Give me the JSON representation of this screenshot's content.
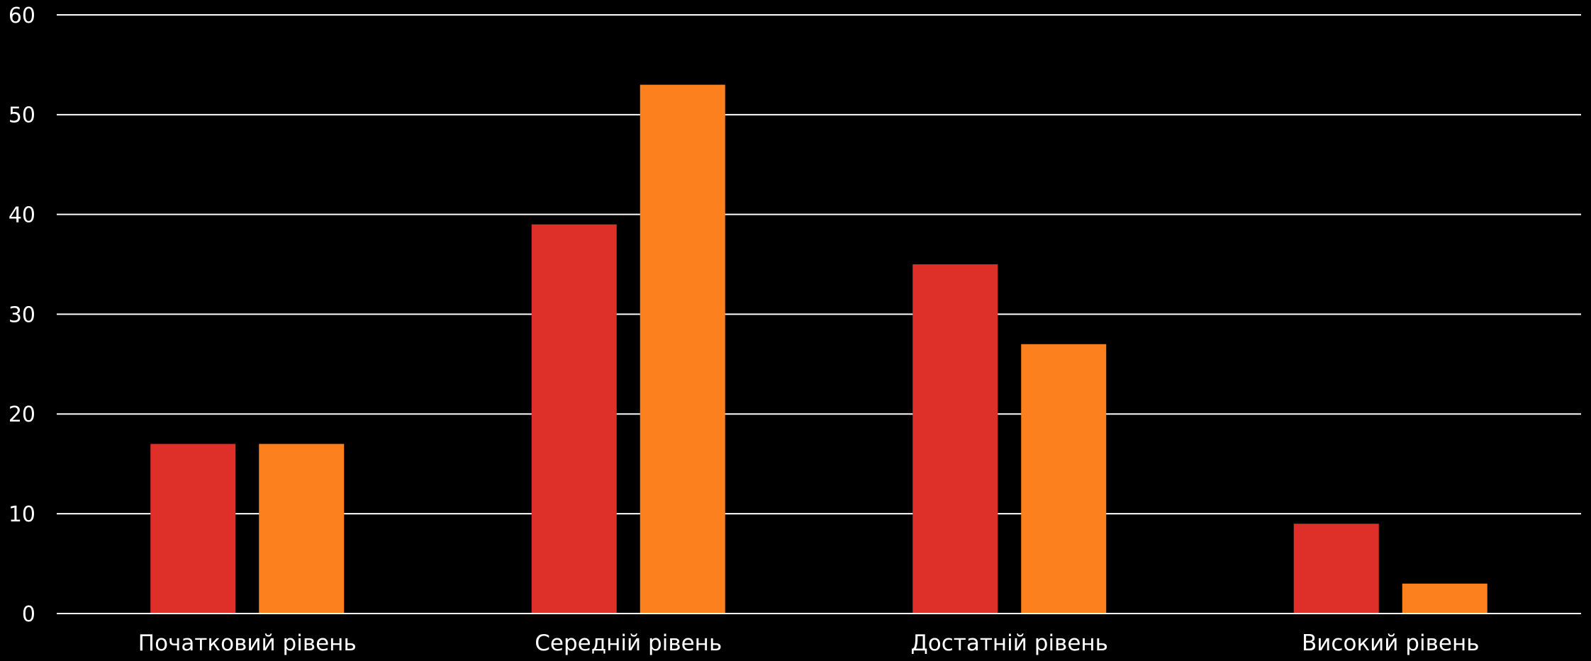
{
  "chart_data": {
    "type": "bar",
    "title": "",
    "xlabel": "",
    "ylabel": "",
    "categories": [
      "Початковий рівень",
      "Середній рівень",
      "Достатній рівень",
      "Високий рівень"
    ],
    "series": [
      {
        "values": [
          17,
          39,
          35,
          9
        ],
        "color": "#DE2F29"
      },
      {
        "values": [
          17,
          53,
          27,
          3
        ],
        "color": "#FC811E"
      }
    ],
    "ylim": [
      0,
      60
    ],
    "yticks": [
      0,
      10,
      20,
      30,
      40,
      50,
      60
    ],
    "grid": true,
    "background": "#000000",
    "gridline_color": "#ffffff",
    "text_color": "#ffffff"
  }
}
